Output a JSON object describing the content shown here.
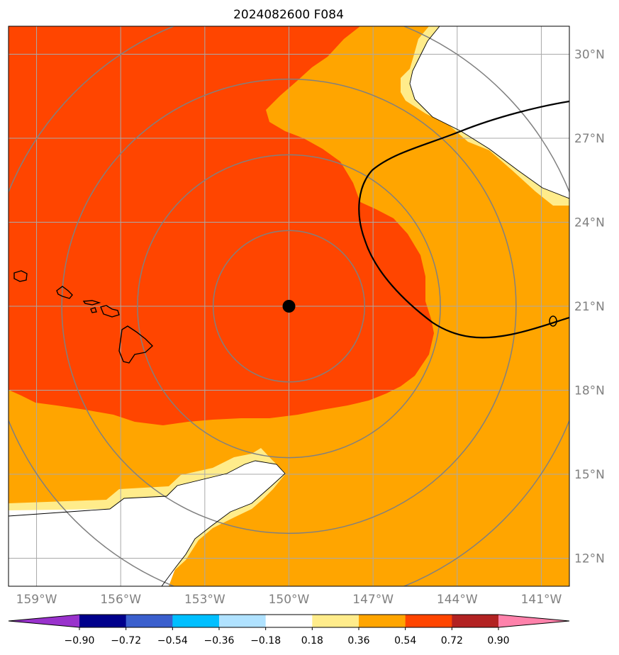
{
  "title": "2024082600 F084",
  "map": {
    "lon_range": [
      -160,
      -140
    ],
    "lat_range": [
      11,
      31
    ],
    "lon_ticks": [
      {
        "value": -159,
        "label": "159°W"
      },
      {
        "value": -156,
        "label": "156°W"
      },
      {
        "value": -153,
        "label": "153°W"
      },
      {
        "value": -150,
        "label": "150°W"
      },
      {
        "value": -147,
        "label": "147°W"
      },
      {
        "value": -144,
        "label": "144°W"
      },
      {
        "value": -141,
        "label": "141°W"
      }
    ],
    "lat_ticks": [
      {
        "value": 12,
        "label": "12°N"
      },
      {
        "value": 15,
        "label": "15°N"
      },
      {
        "value": 18,
        "label": "18°N"
      },
      {
        "value": 21,
        "label": "21°N"
      },
      {
        "value": 24,
        "label": "24°N"
      },
      {
        "value": 27,
        "label": "27°N"
      },
      {
        "value": 30,
        "label": "30°N"
      }
    ],
    "center": {
      "lon": -150,
      "lat": 21
    },
    "range_ring_radii_deg": [
      2.7,
      5.4,
      8.1,
      10.8
    ],
    "grid": true,
    "colors": {
      "band_036_054": "#ffa500",
      "band_054_072": "#ff4500",
      "band_018_036": "#ffec8b",
      "band_below_018": "#ffffff",
      "rings": "#808080",
      "grid": "#a9a9a9",
      "contour": "#000000",
      "coast": "#000000"
    }
  },
  "colorbar": {
    "extend": "both",
    "bounds": [
      -0.9,
      -0.72,
      -0.54,
      -0.36,
      -0.18,
      0.18,
      0.36,
      0.54,
      0.72,
      0.9
    ],
    "labels": [
      "−0.90",
      "−0.72",
      "−0.54",
      "−0.36",
      "−0.18",
      "0.18",
      "0.36",
      "0.54",
      "0.72",
      "0.90"
    ],
    "colors": [
      "#9932cc",
      "#00008b",
      "#3a5fcd",
      "#00bfff",
      "#b0e2ff",
      "#ffffff",
      "#ffec8b",
      "#ffa500",
      "#ff4500",
      "#b22222",
      "#ff82ab"
    ]
  }
}
